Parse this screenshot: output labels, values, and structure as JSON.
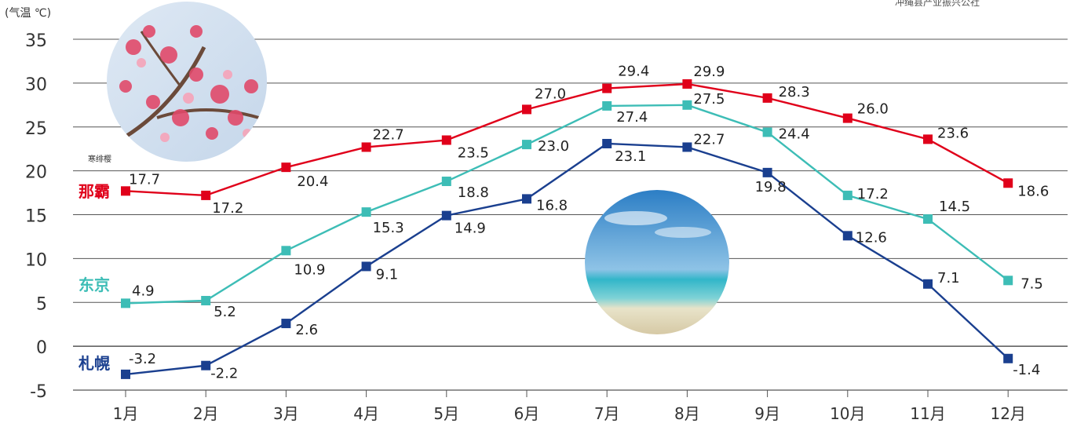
{
  "unit_label": "(气温 ℃)",
  "source_text": "冲绳县产业振兴公社",
  "photo_caption": "寒绯樱",
  "chart_data": {
    "type": "line",
    "categories": [
      "1月",
      "2月",
      "3月",
      "4月",
      "5月",
      "6月",
      "7月",
      "8月",
      "9月",
      "10月",
      "11月",
      "12月"
    ],
    "ylim": [
      -5,
      35
    ],
    "yticks": [
      "35",
      "30",
      "25",
      "20",
      "15",
      "10",
      "5",
      "0",
      "-5"
    ],
    "grid": true,
    "series": [
      {
        "name": "那霸",
        "color": "#e0001a",
        "values": [
          17.7,
          17.2,
          20.4,
          22.7,
          23.5,
          27.0,
          29.4,
          29.9,
          28.3,
          26.0,
          23.6,
          18.6
        ],
        "labels": [
          "17.7",
          "17.2",
          "20.4",
          "22.7",
          "23.5",
          "27.0",
          "29.4",
          "29.9",
          "28.3",
          "26.0",
          "23.6",
          "18.6"
        ]
      },
      {
        "name": "东京",
        "color": "#3dbdb6",
        "values": [
          4.9,
          5.2,
          10.9,
          15.3,
          18.8,
          23.0,
          27.4,
          27.5,
          24.4,
          17.2,
          14.5,
          7.5
        ],
        "labels": [
          "4.9",
          "5.2",
          "10.9",
          "15.3",
          "18.8",
          "23.0",
          "27.4",
          "27.5",
          "24.4",
          "17.2",
          "14.5",
          "7.5"
        ]
      },
      {
        "name": "札幌",
        "color": "#1a3f8f",
        "values": [
          -3.2,
          -2.2,
          2.6,
          9.1,
          14.9,
          16.8,
          23.1,
          22.7,
          19.8,
          12.6,
          7.1,
          -1.4
        ],
        "labels": [
          "-3.2",
          "-2.2",
          "2.6",
          "9.1",
          "14.9",
          "16.8",
          "23.1",
          "22.7",
          "19.8",
          "12.6",
          "7.1",
          "-1.4"
        ]
      }
    ]
  },
  "colors": {
    "grid": "#555555",
    "text": "#333333"
  },
  "images": [
    "cherry-blossom-photo",
    "beach-photo"
  ]
}
